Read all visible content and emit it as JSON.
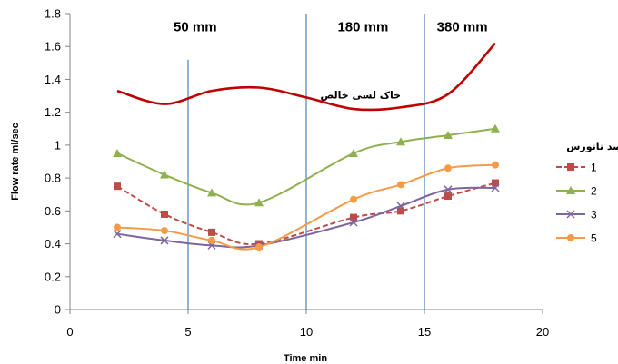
{
  "chart_data": {
    "type": "line",
    "xlabel": "Time   min",
    "ylabel": "Flow rate  ml/sec",
    "xlim": [
      0,
      20
    ],
    "ylim": [
      0,
      1.8
    ],
    "x_ticks": [
      "0",
      "5",
      "10",
      "15",
      "20"
    ],
    "y_ticks": [
      "0",
      "0.2",
      "0.4",
      "0.6",
      "0.8",
      "1",
      "1.2",
      "1.4",
      "1.6",
      "1.8"
    ],
    "grid": false,
    "legend_position": "right",
    "legend_title": "درصد نانورس",
    "series": [
      {
        "name": "خاک لسی خالص",
        "color": "#c00000",
        "style": "solid",
        "marker": "none",
        "x": [
          2,
          4,
          6,
          8,
          10,
          12,
          14,
          16,
          18
        ],
        "values": [
          1.33,
          1.25,
          1.33,
          1.35,
          1.29,
          1.22,
          1.23,
          1.31,
          1.62
        ]
      },
      {
        "name": "1",
        "color": "#be4b48",
        "style": "dashed",
        "marker": "square",
        "x": [
          2,
          4,
          6,
          8,
          12,
          14,
          16,
          18
        ],
        "values": [
          0.75,
          0.58,
          0.47,
          0.4,
          0.56,
          0.6,
          0.69,
          0.77
        ]
      },
      {
        "name": "2",
        "color": "#8fb04f",
        "style": "solid",
        "marker": "triangle",
        "x": [
          2,
          4,
          6,
          8,
          12,
          14,
          16,
          18
        ],
        "values": [
          0.95,
          0.82,
          0.71,
          0.65,
          0.95,
          1.02,
          1.06,
          1.1
        ]
      },
      {
        "name": "3",
        "color": "#7e65a0",
        "style": "solid",
        "marker": "x",
        "x": [
          2,
          4,
          6,
          8,
          12,
          14,
          16,
          18
        ],
        "values": [
          0.46,
          0.42,
          0.39,
          0.39,
          0.53,
          0.63,
          0.73,
          0.74
        ]
      },
      {
        "name": "5",
        "color": "#f59b46",
        "style": "solid",
        "marker": "circle",
        "x": [
          2,
          4,
          6,
          8,
          12,
          14,
          16,
          18
        ],
        "values": [
          0.5,
          0.48,
          0.42,
          0.38,
          0.67,
          0.76,
          0.86,
          0.88
        ]
      }
    ],
    "vertical_lines": [
      {
        "x": 5,
        "y_top": 1.52
      },
      {
        "x": 10,
        "y_top": 1.8
      },
      {
        "x": 15,
        "y_top": 1.8
      }
    ],
    "vertical_line_color": "#4a7ebb",
    "annotations": [
      {
        "text": "50 mm",
        "x": 5.3,
        "y": 1.72
      },
      {
        "text": "180 mm",
        "x": 12.4,
        "y": 1.72
      },
      {
        "text": "380 mm",
        "x": 16.6,
        "y": 1.72
      },
      {
        "text": "خاک لسی خالص",
        "x": 12.3,
        "y": 1.31,
        "small": true
      }
    ]
  }
}
